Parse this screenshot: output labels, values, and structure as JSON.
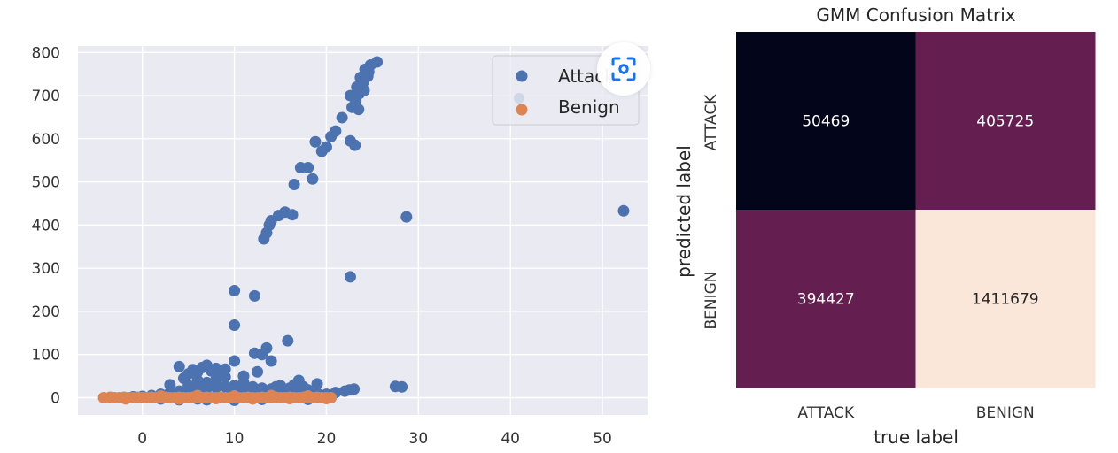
{
  "colors": {
    "attack": "#4c72b0",
    "benign": "#dd8452",
    "plot_bg": "#eaeaf2",
    "grid": "#ffffff",
    "tick_text": "#333333",
    "lens_icon": "#1a73e8"
  },
  "overlay": {
    "icon": "lens-scan-icon"
  },
  "chart_data": [
    {
      "type": "scatter",
      "title": "",
      "xlabel": "",
      "ylabel": "",
      "xlim": [
        -7,
        55
      ],
      "ylim": [
        -40,
        815
      ],
      "xticks": [
        0,
        10,
        20,
        30,
        40,
        50
      ],
      "yticks": [
        0,
        100,
        200,
        300,
        400,
        500,
        600,
        700,
        800
      ],
      "grid": true,
      "legend": "top-right",
      "series": [
        {
          "name": "Attack",
          "color": "#4c72b0",
          "points": [
            [
              4,
              72
            ],
            [
              5,
              55
            ],
            [
              5.5,
              65
            ],
            [
              6,
              60
            ],
            [
              6.5,
              70
            ],
            [
              7,
              75
            ],
            [
              7.5,
              62
            ],
            [
              8,
              68
            ],
            [
              8.5,
              58
            ],
            [
              9,
              66
            ],
            [
              4.5,
              45
            ],
            [
              6,
              40
            ],
            [
              7,
              35
            ],
            [
              8,
              42
            ],
            [
              9,
              48
            ],
            [
              10,
              85
            ],
            [
              11,
              50
            ],
            [
              12.2,
              103
            ],
            [
              12.5,
              60
            ],
            [
              13,
              100
            ],
            [
              13.5,
              115
            ],
            [
              14,
              85
            ],
            [
              15.8,
              132
            ],
            [
              17,
              40
            ],
            [
              19,
              32
            ],
            [
              14.5,
              25
            ],
            [
              16,
              22
            ],
            [
              18,
              18
            ],
            [
              10,
              248
            ],
            [
              12.2,
              236
            ],
            [
              10,
              168
            ],
            [
              22.6,
              280
            ],
            [
              13.2,
              368
            ],
            [
              13.5,
              382
            ],
            [
              13.8,
              400
            ],
            [
              14,
              410
            ],
            [
              14.8,
              422
            ],
            [
              15.5,
              430
            ],
            [
              16.3,
              424
            ],
            [
              28.7,
              419
            ],
            [
              52.3,
              433
            ],
            [
              16.5,
              494
            ],
            [
              18.5,
              507
            ],
            [
              17.2,
              533
            ],
            [
              18,
              533
            ],
            [
              18.8,
              593
            ],
            [
              19.5,
              571
            ],
            [
              20,
              581
            ],
            [
              20.5,
              605
            ],
            [
              21,
              618
            ],
            [
              21.7,
              649
            ],
            [
              22.6,
              595
            ],
            [
              23.1,
              585
            ],
            [
              22.8,
              673
            ],
            [
              23.2,
              688
            ],
            [
              23.6,
              705
            ],
            [
              24.1,
              712
            ],
            [
              22.6,
              700
            ],
            [
              23.5,
              668
            ],
            [
              24,
              731
            ],
            [
              23.7,
              742
            ],
            [
              24.5,
              745
            ],
            [
              24.2,
              761
            ],
            [
              24.8,
              771
            ],
            [
              25.5,
              778
            ],
            [
              23.3,
              720
            ],
            [
              24.6,
              755
            ],
            [
              1,
              5
            ],
            [
              2,
              8
            ],
            [
              3,
              12
            ],
            [
              4,
              15
            ],
            [
              5,
              18
            ],
            [
              6,
              20
            ],
            [
              7,
              22
            ],
            [
              8,
              24
            ],
            [
              9,
              26
            ],
            [
              10,
              28
            ],
            [
              11,
              30
            ],
            [
              12,
              25
            ],
            [
              13,
              22
            ],
            [
              14,
              20
            ],
            [
              15,
              18
            ],
            [
              16,
              15
            ],
            [
              17,
              14
            ],
            [
              18,
              12
            ],
            [
              19,
              10
            ],
            [
              20,
              8
            ],
            [
              21,
              12
            ],
            [
              22,
              15
            ],
            [
              22.5,
              18
            ],
            [
              23,
              20
            ],
            [
              27.5,
              26
            ],
            [
              28.2,
              25
            ],
            [
              4,
              -5
            ],
            [
              6,
              -3
            ],
            [
              9,
              2
            ],
            [
              12,
              -2
            ],
            [
              15,
              3
            ],
            [
              18,
              -4
            ],
            [
              3,
              30
            ],
            [
              5,
              28
            ],
            [
              8,
              32
            ],
            [
              11,
              35
            ],
            [
              12,
              10
            ],
            [
              14,
              8
            ],
            [
              16,
              5
            ],
            [
              19,
              6
            ],
            [
              0,
              3
            ],
            [
              -1,
              2
            ],
            [
              2,
              -3
            ],
            [
              7,
              -5
            ],
            [
              10,
              -6
            ],
            [
              13,
              -4
            ],
            [
              9.5,
              12
            ],
            [
              10.5,
              15
            ],
            [
              11.5,
              18
            ],
            [
              6.5,
              10
            ],
            [
              4.5,
              8
            ],
            [
              17.5,
              25
            ],
            [
              16.5,
              30
            ],
            [
              15,
              28
            ]
          ]
        },
        {
          "name": "Benign",
          "color": "#dd8452",
          "points": [
            [
              -4.2,
              0
            ],
            [
              -3.5,
              1
            ],
            [
              -3,
              0
            ],
            [
              -2.5,
              0
            ],
            [
              -2,
              1
            ],
            [
              -1.5,
              0
            ],
            [
              -1,
              0
            ],
            [
              -0.5,
              1
            ],
            [
              0,
              0
            ],
            [
              0.5,
              0
            ],
            [
              1,
              1
            ],
            [
              1.5,
              0
            ],
            [
              2,
              0
            ],
            [
              2.5,
              1
            ],
            [
              3,
              0
            ],
            [
              3.5,
              0
            ],
            [
              4,
              1
            ],
            [
              4.5,
              0
            ],
            [
              5,
              0
            ],
            [
              5.5,
              1
            ],
            [
              6,
              0
            ],
            [
              6.5,
              0
            ],
            [
              7,
              1
            ],
            [
              7.5,
              0
            ],
            [
              8,
              0
            ],
            [
              8.5,
              1
            ],
            [
              9,
              0
            ],
            [
              9.5,
              0
            ],
            [
              10,
              1
            ],
            [
              10.5,
              0
            ],
            [
              11,
              0
            ],
            [
              11.5,
              1
            ],
            [
              12,
              0
            ],
            [
              12.5,
              0
            ],
            [
              13,
              1
            ],
            [
              13.5,
              0
            ],
            [
              14,
              0
            ],
            [
              14.5,
              1
            ],
            [
              15,
              0
            ],
            [
              15.5,
              0
            ],
            [
              16,
              1
            ],
            [
              16.5,
              0
            ],
            [
              17,
              0
            ],
            [
              17.5,
              1
            ],
            [
              18,
              0
            ],
            [
              18.5,
              0
            ],
            [
              19,
              1
            ],
            [
              19.5,
              0
            ],
            [
              20,
              0
            ],
            [
              20.5,
              0
            ],
            [
              -1.8,
              -3
            ],
            [
              2,
              4
            ],
            [
              4,
              -3
            ],
            [
              6,
              5
            ],
            [
              8,
              -2
            ],
            [
              10,
              4
            ],
            [
              12,
              -3
            ],
            [
              14,
              5
            ],
            [
              16,
              -2
            ],
            [
              18,
              4
            ],
            [
              20,
              -2
            ]
          ]
        }
      ]
    },
    {
      "type": "heatmap",
      "title": "GMM Confusion Matrix",
      "xlabel": "true label",
      "ylabel": "predicted label",
      "x_categories": [
        "ATTACK",
        "BENIGN"
      ],
      "y_categories": [
        "ATTACK",
        "BENIGN"
      ],
      "values": [
        [
          50469,
          405725
        ],
        [
          394427,
          1411679
        ]
      ],
      "cell_colors": [
        [
          "#03051a",
          "#641e4f"
        ],
        [
          "#641e4f",
          "#fae7da"
        ]
      ],
      "text_colors": [
        [
          "#ffffff",
          "#ffffff"
        ],
        [
          "#ffffff",
          "#262626"
        ]
      ],
      "grid": false,
      "legend": "none"
    }
  ]
}
